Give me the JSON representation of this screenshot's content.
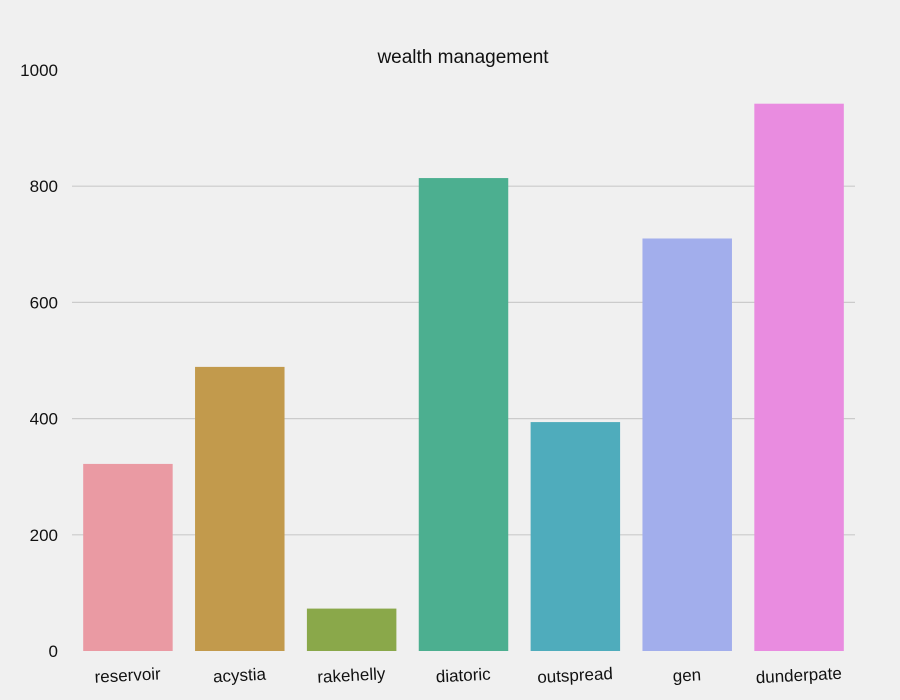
{
  "chart_data": {
    "type": "bar",
    "title": "wealth management",
    "xlabel": "",
    "ylabel": "",
    "categories": [
      "reservoir",
      "acystia",
      "rakehelly",
      "diatoric",
      "outspread",
      "gen",
      "dunderpate"
    ],
    "values": [
      322,
      489,
      73,
      814,
      394,
      710,
      942
    ],
    "colors": [
      "#ea9aa3",
      "#c29a4c",
      "#8aa84a",
      "#4caf90",
      "#4facbc",
      "#a2aeec",
      "#e98ce0"
    ],
    "ylim": [
      0,
      1000
    ],
    "yticks": [
      0,
      200,
      400,
      600,
      800,
      1000
    ],
    "grid": true,
    "tick_label_rotation": 3
  },
  "colors": {
    "background": "#f0f0f0",
    "grid": "#cbcbcb"
  }
}
